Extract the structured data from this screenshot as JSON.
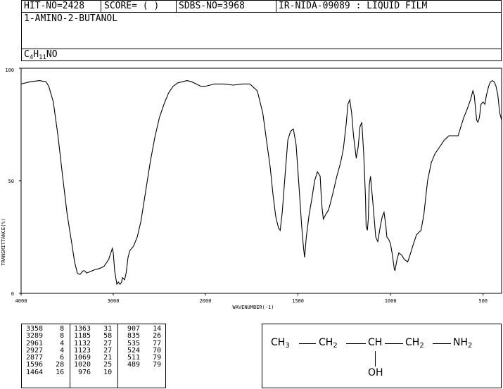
{
  "header": {
    "hit_no": "HIT-NO=2428",
    "score": "SCORE=  (  )",
    "sdbs_no": "SDBS-NO=3968",
    "ir_nida": "IR-NIDA-09089 : LIQUID FILM",
    "compound_name": "1-AMINO-2-BUTANOL",
    "formula": {
      "c": "C",
      "c_n": "4",
      "h": "H",
      "h_n": "11",
      "rest": "NO"
    }
  },
  "chart_data": {
    "type": "line",
    "xlabel": "WAVENUMBER(-1)",
    "ylabel": "TRANSMITTANCE(%)",
    "xlim": [
      4000,
      400
    ],
    "ylim": [
      0,
      100
    ],
    "x_ticks": [
      "4000",
      "3000",
      "2000",
      "1500",
      "1000",
      "500"
    ],
    "y_ticks": [
      "100",
      "50",
      "0"
    ],
    "series": [
      {
        "points": [
          [
            4000,
            93
          ],
          [
            3900,
            94
          ],
          [
            3800,
            94.5
          ],
          [
            3730,
            94
          ],
          [
            3700,
            92
          ],
          [
            3650,
            85
          ],
          [
            3600,
            70
          ],
          [
            3550,
            52
          ],
          [
            3500,
            35
          ],
          [
            3450,
            22
          ],
          [
            3420,
            14
          ],
          [
            3390,
            9
          ],
          [
            3370,
            8.5
          ],
          [
            3358,
            8.5
          ],
          [
            3330,
            10
          ],
          [
            3310,
            10
          ],
          [
            3289,
            9
          ],
          [
            3260,
            9.5
          ],
          [
            3230,
            10
          ],
          [
            3200,
            10.5
          ],
          [
            3150,
            11
          ],
          [
            3100,
            12
          ],
          [
            3050,
            15
          ],
          [
            3010,
            20
          ],
          [
            3000,
            18
          ],
          [
            2985,
            10
          ],
          [
            2961,
            4
          ],
          [
            2945,
            5
          ],
          [
            2927,
            4
          ],
          [
            2910,
            5
          ],
          [
            2900,
            7
          ],
          [
            2877,
            6
          ],
          [
            2860,
            9
          ],
          [
            2840,
            16
          ],
          [
            2820,
            19
          ],
          [
            2780,
            21
          ],
          [
            2740,
            25
          ],
          [
            2700,
            32
          ],
          [
            2650,
            45
          ],
          [
            2600,
            58
          ],
          [
            2550,
            69
          ],
          [
            2500,
            78
          ],
          [
            2450,
            84
          ],
          [
            2400,
            89
          ],
          [
            2350,
            92
          ],
          [
            2300,
            93.5
          ],
          [
            2250,
            94
          ],
          [
            2200,
            94.5
          ],
          [
            2150,
            94
          ],
          [
            2100,
            93
          ],
          [
            2050,
            92
          ],
          [
            2000,
            92
          ],
          [
            1950,
            93
          ],
          [
            1900,
            93
          ],
          [
            1850,
            92.5
          ],
          [
            1800,
            93
          ],
          [
            1760,
            93
          ],
          [
            1720,
            90
          ],
          [
            1690,
            80
          ],
          [
            1670,
            68
          ],
          [
            1650,
            56
          ],
          [
            1635,
            44
          ],
          [
            1620,
            34
          ],
          [
            1605,
            29
          ],
          [
            1596,
            28
          ],
          [
            1585,
            36
          ],
          [
            1570,
            52
          ],
          [
            1555,
            68
          ],
          [
            1540,
            72
          ],
          [
            1525,
            73
          ],
          [
            1510,
            66
          ],
          [
            1495,
            48
          ],
          [
            1480,
            30
          ],
          [
            1470,
            20
          ],
          [
            1464,
            16
          ],
          [
            1455,
            25
          ],
          [
            1440,
            35
          ],
          [
            1425,
            42
          ],
          [
            1410,
            50
          ],
          [
            1395,
            54
          ],
          [
            1380,
            52
          ],
          [
            1375,
            44
          ],
          [
            1370,
            38
          ],
          [
            1363,
            33
          ],
          [
            1350,
            35
          ],
          [
            1335,
            37
          ],
          [
            1325,
            40
          ],
          [
            1310,
            45
          ],
          [
            1290,
            52
          ],
          [
            1270,
            58
          ],
          [
            1255,
            64
          ],
          [
            1240,
            75
          ],
          [
            1230,
            84
          ],
          [
            1220,
            86
          ],
          [
            1210,
            80
          ],
          [
            1200,
            70
          ],
          [
            1185,
            60
          ],
          [
            1175,
            65
          ],
          [
            1165,
            74
          ],
          [
            1155,
            76
          ],
          [
            1145,
            62
          ],
          [
            1135,
            42
          ],
          [
            1132,
            30
          ],
          [
            1125,
            28
          ],
          [
            1120,
            33
          ],
          [
            1115,
            48
          ],
          [
            1108,
            52
          ],
          [
            1095,
            40
          ],
          [
            1080,
            25
          ],
          [
            1069,
            23
          ],
          [
            1055,
            30
          ],
          [
            1045,
            34
          ],
          [
            1035,
            36
          ],
          [
            1025,
            30
          ],
          [
            1020,
            25
          ],
          [
            1010,
            24
          ],
          [
            1000,
            22
          ],
          [
            990,
            17
          ],
          [
            980,
            11
          ],
          [
            976,
            10
          ],
          [
            965,
            15
          ],
          [
            955,
            18
          ],
          [
            940,
            17
          ],
          [
            925,
            15
          ],
          [
            907,
            14
          ],
          [
            895,
            17
          ],
          [
            880,
            21
          ],
          [
            860,
            26
          ],
          [
            835,
            28
          ],
          [
            820,
            35
          ],
          [
            800,
            50
          ],
          [
            780,
            58
          ],
          [
            760,
            62
          ],
          [
            735,
            65
          ],
          [
            710,
            68
          ],
          [
            685,
            70
          ],
          [
            650,
            70
          ],
          [
            635,
            70
          ],
          [
            624,
            73
          ],
          [
            605,
            78
          ],
          [
            585,
            82
          ],
          [
            568,
            86
          ],
          [
            555,
            90
          ],
          [
            548,
            88
          ],
          [
            535,
            77
          ],
          [
            528,
            76
          ],
          [
            520,
            78
          ],
          [
            511,
            84
          ],
          [
            500,
            85
          ],
          [
            490,
            84
          ],
          [
            482,
            88
          ],
          [
            470,
            92
          ],
          [
            460,
            94
          ],
          [
            450,
            94.5
          ],
          [
            440,
            94
          ],
          [
            430,
            92
          ],
          [
            420,
            88
          ],
          [
            410,
            80
          ],
          [
            400,
            77
          ]
        ]
      }
    ]
  },
  "peaks": [
    [
      [
        "3358",
        "8"
      ],
      [
        "3289",
        "8"
      ],
      [
        "2961",
        "4"
      ],
      [
        "2927",
        "4"
      ],
      [
        "2877",
        "6"
      ],
      [
        "1596",
        "28"
      ],
      [
        "1464",
        "16"
      ]
    ],
    [
      [
        "1363",
        "31"
      ],
      [
        "1185",
        "58"
      ],
      [
        "1132",
        "27"
      ],
      [
        "1123",
        "27"
      ],
      [
        "1069",
        "21"
      ],
      [
        "1020",
        "25"
      ],
      [
        "976",
        "10"
      ]
    ],
    [
      [
        "907",
        "14"
      ],
      [
        "835",
        "26"
      ],
      [
        "535",
        "77"
      ],
      [
        "524",
        "70"
      ],
      [
        "511",
        "79"
      ],
      [
        "489",
        "79"
      ]
    ]
  ],
  "structure": {
    "ch3": "CH",
    "ch3_n": "3",
    "ch2a": "CH",
    "ch2a_n": "2",
    "ch": "CH",
    "ch2b": "CH",
    "ch2b_n": "2",
    "nh2": "NH",
    "nh2_n": "2",
    "oh": "OH"
  }
}
